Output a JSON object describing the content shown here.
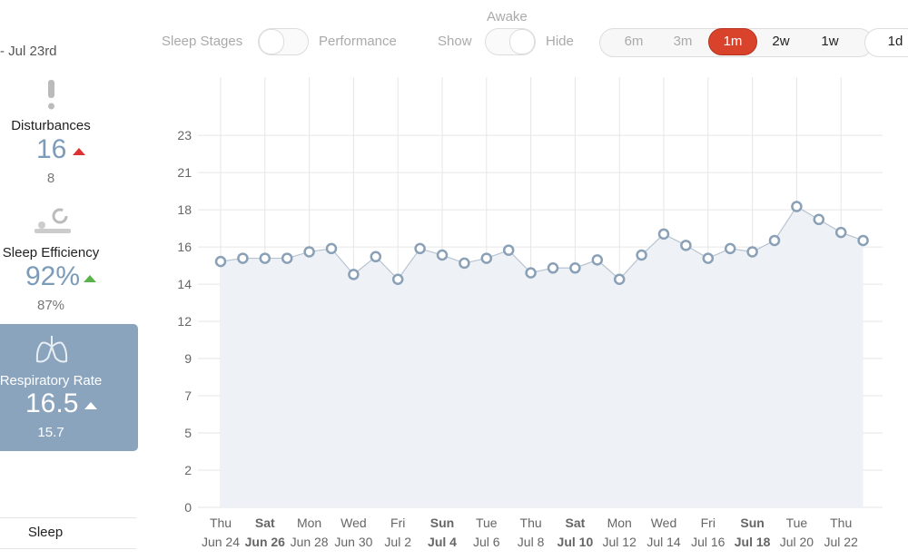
{
  "ui": {
    "date_range": "- Jul 23rd",
    "metrics": [
      {
        "label": "Disturbances",
        "value": "16",
        "baseline": "8"
      },
      {
        "label": "Sleep Efficiency",
        "value": "92%",
        "baseline": "87%"
      },
      {
        "label": "Respiratory Rate",
        "value": "16.5",
        "baseline": "15.7"
      }
    ],
    "footer_tab": "Sleep",
    "toggle_left": {
      "off": "Sleep Stages",
      "on": "Performance"
    },
    "toggle_right": {
      "title": "Awake",
      "off": "Show",
      "on": "Hide"
    },
    "range_buttons": [
      "6m",
      "3m",
      "1m",
      "2w",
      "1w",
      "1d"
    ],
    "active_range": 2
  },
  "chart_data": {
    "type": "line",
    "categories": [
      "Jun 24",
      null,
      "Jun 26",
      null,
      "Jun 28",
      null,
      "Jun 30",
      null,
      "Jul 2",
      null,
      "Jul 4",
      null,
      "Jul 6",
      null,
      "Jul 8",
      null,
      "Jul 10",
      null,
      "Jul 12",
      null,
      "Jul 14",
      null,
      "Jul 16",
      null,
      "Jul 18",
      null,
      "Jul 20",
      null,
      "Jul 22",
      null
    ],
    "weekdays": [
      "Thu",
      null,
      "Sat",
      null,
      "Mon",
      null,
      "Wed",
      null,
      "Fri",
      null,
      "Sun",
      null,
      "Tue",
      null,
      "Thu",
      null,
      "Sat",
      null,
      "Mon",
      null,
      "Wed",
      null,
      "Fri",
      null,
      "Sun",
      null,
      "Tue",
      null,
      "Thu",
      null
    ],
    "bold_categories": [
      2,
      10,
      16,
      24
    ],
    "values": [
      15.2,
      15.4,
      15.4,
      15.4,
      15.8,
      16.0,
      14.4,
      15.5,
      14.1,
      16.0,
      15.6,
      15.1,
      15.4,
      15.9,
      14.5,
      14.8,
      14.8,
      15.3,
      14.1,
      15.6,
      16.9,
      16.2,
      15.4,
      16.0,
      15.8,
      16.5,
      18.6,
      17.8,
      17.0,
      16.5
    ],
    "color": "#8aa0b6",
    "area_color": "#eef2f6",
    "ylim": [
      0,
      26.6
    ],
    "yticks": [
      0,
      {
        "value": 2.3,
        "label": "2"
      },
      {
        "value": 4.6,
        "label": "5"
      },
      {
        "value": 6.9,
        "label": "7"
      },
      {
        "value": 9.2,
        "label": "9"
      },
      {
        "value": 11.5,
        "label": "12"
      },
      {
        "value": 13.8,
        "label": "14"
      },
      {
        "value": 16.1,
        "label": "16"
      },
      {
        "value": 18.4,
        "label": "18"
      },
      {
        "value": 20.7,
        "label": "21"
      },
      23
    ],
    "grid": true
  }
}
